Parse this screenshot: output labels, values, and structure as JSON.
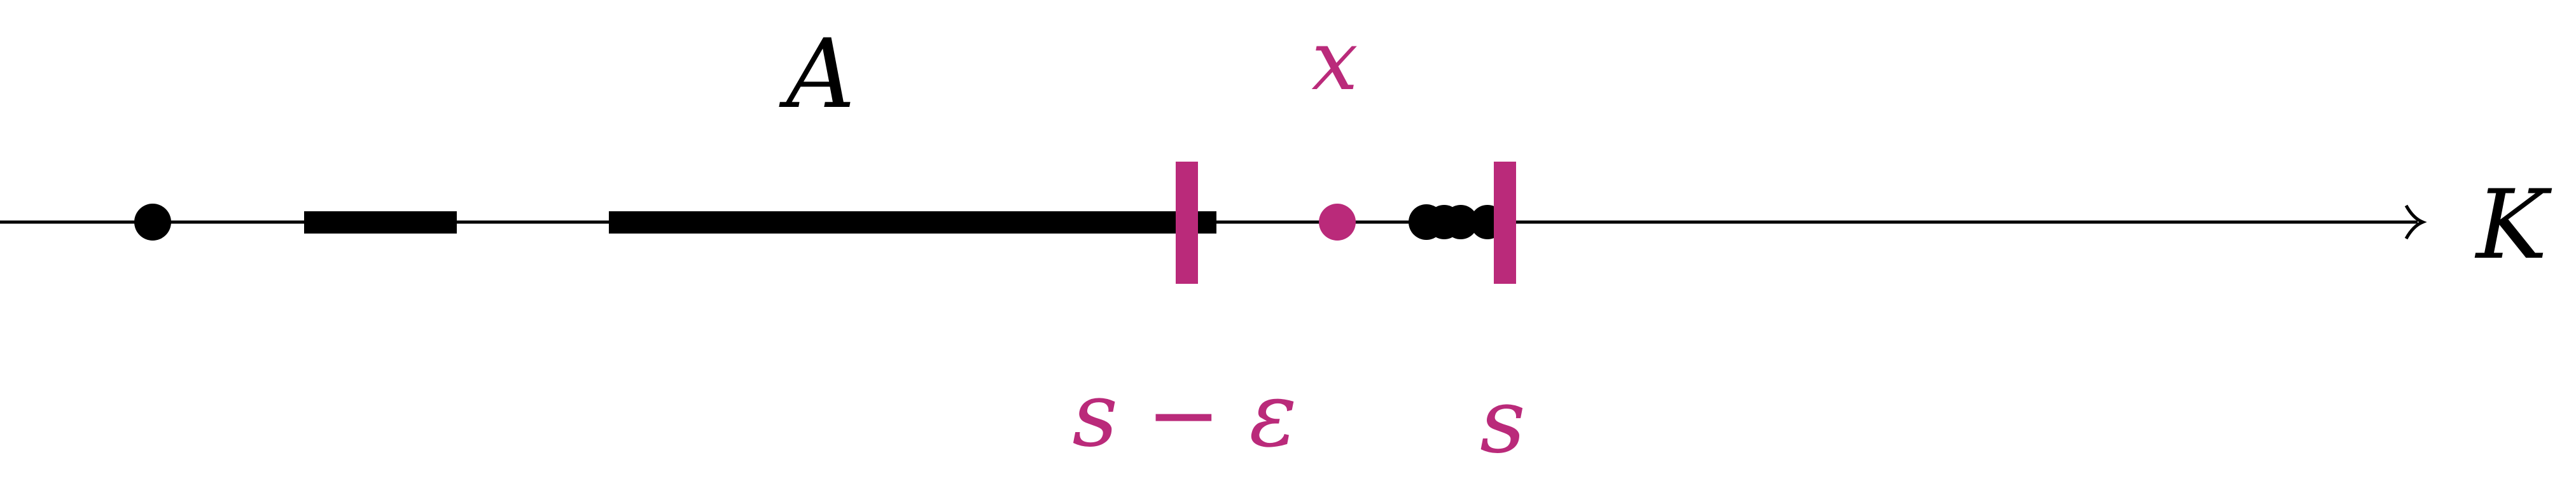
{
  "labels": {
    "set": "A",
    "point": "x",
    "field": "K",
    "lower_bound": "s − ε",
    "supremum": "s"
  },
  "colors": {
    "ink": "#000000",
    "accent": "#BA2A7A"
  }
}
